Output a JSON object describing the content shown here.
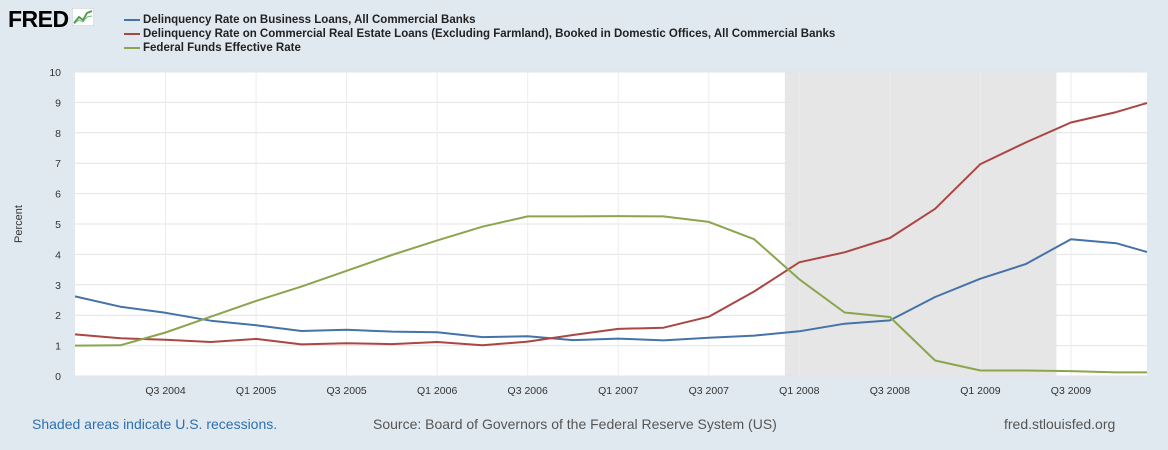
{
  "header": {
    "logo_text": "FRED"
  },
  "legend": [
    {
      "label": "Delinquency Rate on Business Loans, All Commercial Banks",
      "color": "#4572a7"
    },
    {
      "label": "Delinquency Rate on Commercial Real Estate Loans (Excluding Farmland), Booked in Domestic Offices, All Commercial Banks",
      "color": "#aa4643"
    },
    {
      "label": "Federal Funds Effective Rate",
      "color": "#89a54e"
    }
  ],
  "footer": {
    "recession_note": "Shaded areas indicate U.S. recessions.",
    "source": "Source: Board of Governors of the Federal Reserve System (US)",
    "site": "fred.stlouisfed.org"
  },
  "chart_data": {
    "type": "line",
    "title": "",
    "xlabel": "",
    "ylabel": "Percent",
    "ylim": [
      0,
      10
    ],
    "yticks": [
      0,
      1,
      2,
      3,
      4,
      5,
      6,
      7,
      8,
      9,
      10
    ],
    "xlim": [
      2004.0,
      2009.92
    ],
    "x_tick_labels": [
      {
        "label": "Q3 2004",
        "x": 2004.5
      },
      {
        "label": "Q1 2005",
        "x": 2005.0
      },
      {
        "label": "Q3 2005",
        "x": 2005.5
      },
      {
        "label": "Q1 2006",
        "x": 2006.0
      },
      {
        "label": "Q3 2006",
        "x": 2006.5
      },
      {
        "label": "Q1 2007",
        "x": 2007.0
      },
      {
        "label": "Q3 2007",
        "x": 2007.5
      },
      {
        "label": "Q1 2008",
        "x": 2008.0
      },
      {
        "label": "Q3 2008",
        "x": 2008.5
      },
      {
        "label": "Q1 2009",
        "x": 2009.0
      },
      {
        "label": "Q3 2009",
        "x": 2009.5
      }
    ],
    "recessions": [
      {
        "start": 2007.92,
        "end": 2009.42
      }
    ],
    "grid": true,
    "x": [
      2004.0,
      2004.25,
      2004.5,
      2004.75,
      2005.0,
      2005.25,
      2005.5,
      2005.75,
      2006.0,
      2006.25,
      2006.5,
      2006.75,
      2007.0,
      2007.25,
      2007.5,
      2007.75,
      2008.0,
      2008.25,
      2008.5,
      2008.75,
      2009.0,
      2009.25,
      2009.5,
      2009.75,
      2009.92
    ],
    "series": [
      {
        "name": "Delinquency Rate on Business Loans, All Commercial Banks",
        "values": [
          2.62,
          2.28,
          2.08,
          1.82,
          1.67,
          1.48,
          1.52,
          1.46,
          1.44,
          1.28,
          1.31,
          1.18,
          1.23,
          1.17,
          1.26,
          1.33,
          1.47,
          1.72,
          1.83,
          2.6,
          3.2,
          3.68,
          4.5,
          4.37,
          4.08
        ]
      },
      {
        "name": "Delinquency Rate on Commercial Real Estate Loans (Excluding Farmland), Booked in Domestic Offices, All Commercial Banks",
        "values": [
          1.37,
          1.24,
          1.19,
          1.12,
          1.22,
          1.04,
          1.08,
          1.05,
          1.12,
          1.01,
          1.13,
          1.35,
          1.55,
          1.59,
          1.95,
          2.78,
          3.74,
          4.07,
          4.54,
          5.5,
          6.97,
          7.68,
          8.34,
          8.68,
          8.98
        ]
      },
      {
        "name": "Federal Funds Effective Rate",
        "values": [
          1.0,
          1.01,
          1.43,
          1.95,
          2.47,
          2.94,
          3.46,
          3.98,
          4.46,
          4.91,
          5.25,
          5.25,
          5.26,
          5.25,
          5.07,
          4.5,
          3.18,
          2.09,
          1.94,
          0.51,
          0.18,
          0.18,
          0.16,
          0.12,
          0.12
        ]
      }
    ]
  }
}
